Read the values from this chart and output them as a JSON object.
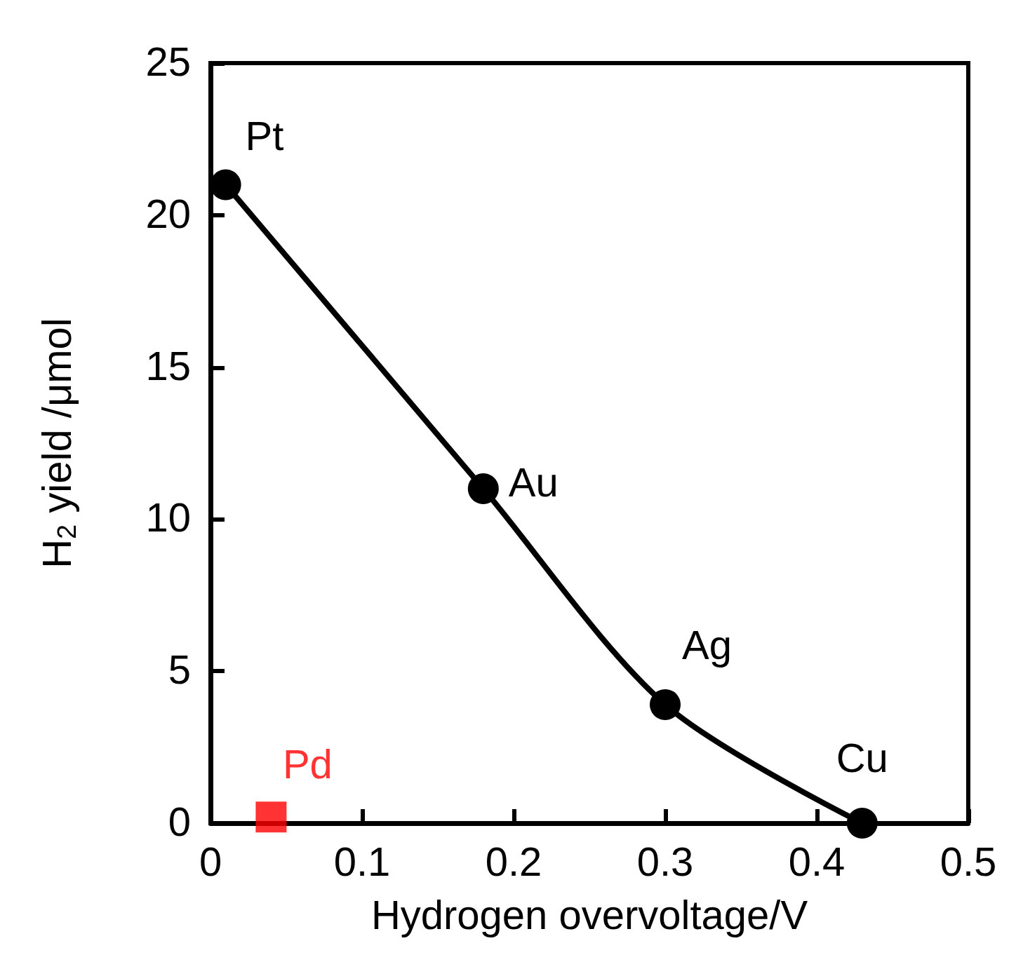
{
  "chart_data": {
    "type": "line",
    "xlabel": "Hydrogen overvoltage/V",
    "ylabel": "H$_{2}$ yield /μmol",
    "xlim": [
      0,
      0.5
    ],
    "xticks": [
      0,
      0.1,
      0.2,
      0.3,
      0.4,
      0.5
    ],
    "ylim": [
      0,
      25
    ],
    "yticks": [
      0,
      5,
      10,
      15,
      20,
      25
    ],
    "grid": false,
    "legend": false,
    "marker": "circle",
    "line_style": "solid",
    "series": [
      {
        "color": "#000000",
        "x": [
          0.01,
          0.18,
          0.3,
          0.43
        ],
        "values": [
          21,
          11,
          3.9,
          0
        ]
      },
      {
        "name": "Pd",
        "type": "scatter",
        "marker": "square",
        "color": "#ff0000",
        "x": [
          0.04
        ],
        "values": [
          0.2
        ]
      }
    ],
    "annotations": [
      {
        "text": "Pt",
        "x": 0.01,
        "y": 21
      },
      {
        "text": "Au",
        "x": 0.18,
        "y": 11
      },
      {
        "text": "Ag",
        "x": 0.3,
        "y": 3.9
      },
      {
        "text": "Cu",
        "x": 0.43,
        "y": 0
      }
    ]
  }
}
